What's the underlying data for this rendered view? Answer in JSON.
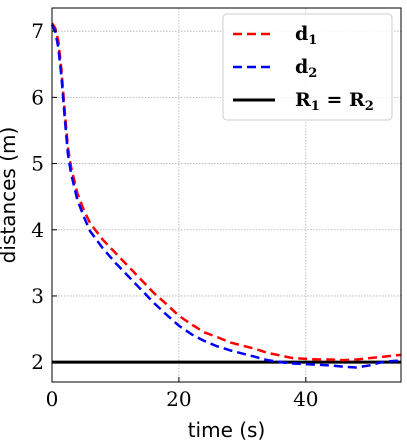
{
  "chart_data": {
    "type": "line",
    "xlabel": "time (s)",
    "ylabel": "distances (m)",
    "xlim": [
      0,
      55
    ],
    "ylim": [
      1.7,
      7.35
    ],
    "xticks": [
      0,
      20,
      40
    ],
    "yticks": [
      2,
      3,
      4,
      5,
      6,
      7
    ],
    "grid": true,
    "legend_position": "top-right",
    "series": [
      {
        "name": "d",
        "subscript": "1",
        "color": "#ff0000",
        "style": "dashed",
        "x": [
          0,
          0.5,
          1,
          1.5,
          2,
          2.5,
          3,
          4,
          5,
          6,
          8,
          10,
          12,
          14,
          16,
          18,
          20,
          22,
          24,
          26,
          28,
          30,
          32,
          34,
          36,
          38,
          40,
          42,
          44,
          46,
          48,
          50,
          52,
          54,
          55
        ],
        "y": [
          7.12,
          7.05,
          6.85,
          6.4,
          5.8,
          5.25,
          4.95,
          4.55,
          4.3,
          4.1,
          3.85,
          3.65,
          3.45,
          3.25,
          3.05,
          2.88,
          2.7,
          2.57,
          2.45,
          2.38,
          2.3,
          2.25,
          2.2,
          2.14,
          2.1,
          2.06,
          2.05,
          2.04,
          2.04,
          2.03,
          2.04,
          2.06,
          2.08,
          2.1,
          2.11
        ]
      },
      {
        "name": "d",
        "subscript": "2",
        "color": "#0000ff",
        "style": "dashed",
        "x": [
          0,
          0.5,
          1,
          1.5,
          2,
          2.5,
          3,
          4,
          5,
          6,
          8,
          10,
          12,
          14,
          16,
          18,
          20,
          22,
          24,
          26,
          28,
          30,
          32,
          34,
          36,
          38,
          40,
          42,
          44,
          46,
          48,
          50,
          52,
          54,
          55
        ],
        "y": [
          7.1,
          7.0,
          6.75,
          6.3,
          5.7,
          5.15,
          4.85,
          4.45,
          4.2,
          3.98,
          3.72,
          3.5,
          3.3,
          3.1,
          2.9,
          2.72,
          2.55,
          2.42,
          2.32,
          2.24,
          2.18,
          2.13,
          2.08,
          2.03,
          2.0,
          1.98,
          1.97,
          1.96,
          1.95,
          1.93,
          1.92,
          1.95,
          2.0,
          2.02,
          2.02
        ]
      },
      {
        "name": "R",
        "subscript": "1",
        "name2": "R",
        "subscript2": "2",
        "color": "#000000",
        "style": "solid",
        "x": [
          0,
          55
        ],
        "y": [
          2,
          2
        ]
      }
    ]
  }
}
